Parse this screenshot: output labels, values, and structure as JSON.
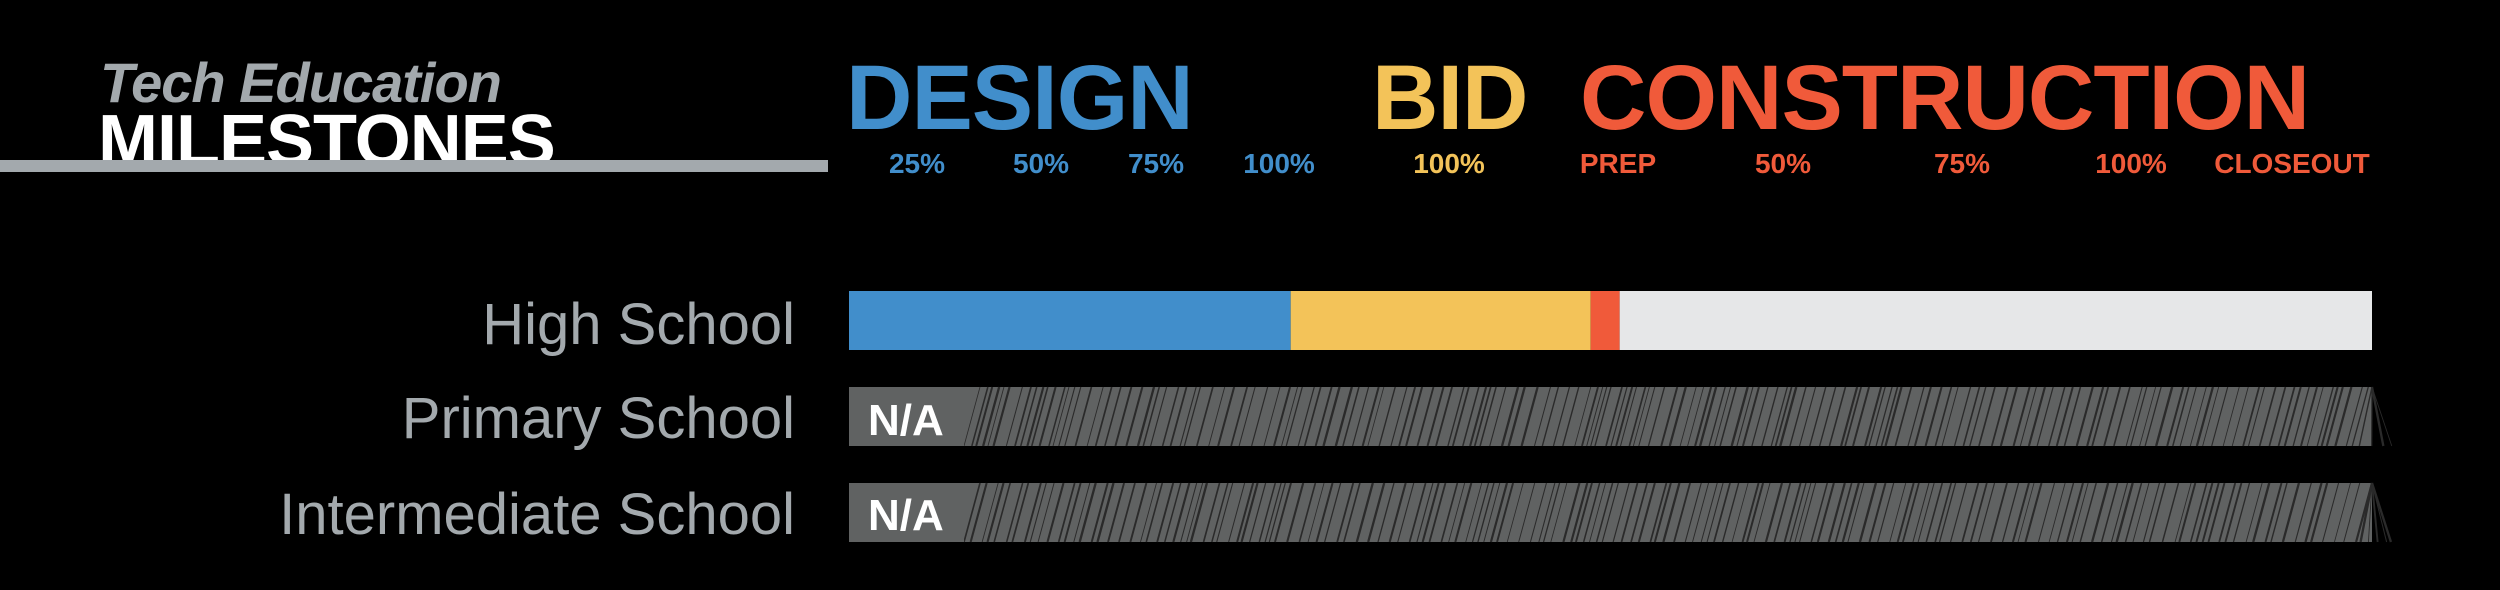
{
  "header": {
    "title_top": "Tech Education",
    "title_main": "MILESTONES"
  },
  "colors": {
    "design": "#418ecb",
    "bid": "#f3c359",
    "construction": "#f05a3a",
    "remaining": "#e6e7e8",
    "na_bar": "#606262",
    "na_hatch": "#2a2a2a",
    "label": "#a3a9ad"
  },
  "chart_data": {
    "type": "bar",
    "phases": [
      {
        "name": "DESIGN",
        "color_key": "design",
        "ticks": [
          "25%",
          "50%",
          "75%",
          "100%"
        ]
      },
      {
        "name": "BID",
        "color_key": "bid",
        "ticks": [
          "100%"
        ]
      },
      {
        "name": "CONSTRUCTION",
        "color_key": "construction",
        "ticks": [
          "PREP",
          "50%",
          "75%",
          "100%",
          "CLOSEOUT"
        ]
      }
    ],
    "rows": [
      {
        "name": "High School",
        "status": "",
        "segments": [
          {
            "phase": "design",
            "fraction": 0.29
          },
          {
            "phase": "bid",
            "fraction": 0.197
          },
          {
            "phase": "construction",
            "fraction": 0.019
          },
          {
            "phase": "remaining",
            "fraction": 0.494
          }
        ]
      },
      {
        "name": "Primary School",
        "status": "N/A",
        "segments": []
      },
      {
        "name": "Intermediate School",
        "status": "N/A",
        "segments": []
      }
    ]
  }
}
